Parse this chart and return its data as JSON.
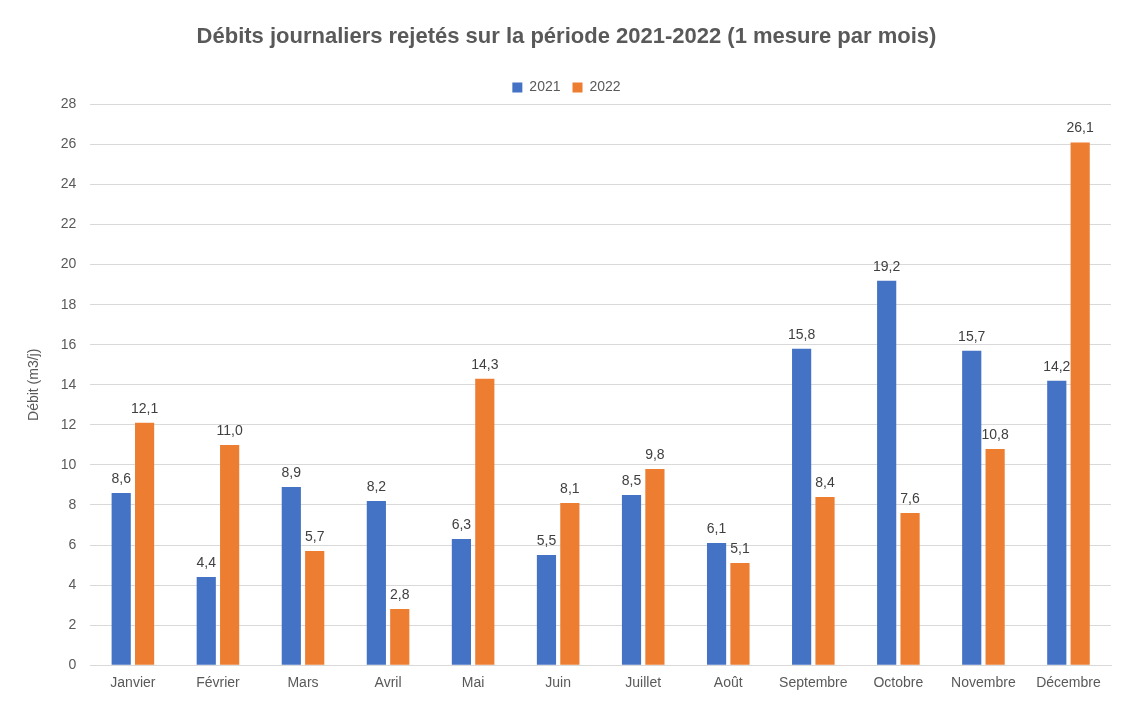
{
  "chart_data": {
    "type": "bar",
    "title": "Débits journaliers rejetés sur la période 2021-2022 (1 mesure par mois)",
    "ylabel": "Débit (m3/j)",
    "categories": [
      "Janvier",
      "Février",
      "Mars",
      "Avril",
      "Mai",
      "Juin",
      "Juillet",
      "Août",
      "Septembre",
      "Octobre",
      "Novembre",
      "Décembre"
    ],
    "series": [
      {
        "name": "2021",
        "color": "#4472c4",
        "values": [
          8.6,
          4.4,
          8.9,
          8.2,
          6.3,
          5.5,
          8.5,
          6.1,
          15.8,
          19.2,
          15.7,
          14.2
        ],
        "value_labels": [
          "8,6",
          "4,4",
          "8,9",
          "8,2",
          "6,3",
          "5,5",
          "8,5",
          "6,1",
          "15,8",
          "19,2",
          "15,7",
          "14,2"
        ]
      },
      {
        "name": "2022",
        "color": "#ed7d31",
        "values": [
          12.1,
          11.0,
          5.7,
          2.8,
          14.3,
          8.1,
          9.8,
          5.1,
          8.4,
          7.6,
          10.8,
          26.1
        ],
        "value_labels": [
          "12,1",
          "11,0",
          "5,7",
          "2,8",
          "14,3",
          "8,1",
          "9,8",
          "5,1",
          "8,4",
          "7,6",
          "10,8",
          "26,1"
        ]
      }
    ],
    "ylim": [
      0,
      28
    ],
    "yticks": [
      0,
      2,
      4,
      6,
      8,
      10,
      12,
      14,
      16,
      18,
      20,
      22,
      24,
      26,
      28
    ],
    "grid": "y",
    "legend": "top"
  }
}
